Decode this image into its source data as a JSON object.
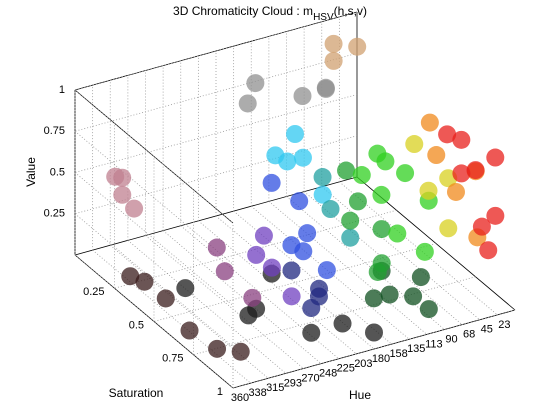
{
  "chart_data": {
    "type": "scatter3d",
    "title": "3D Chromaticity Cloud : m",
    "title_subscript": "HSV",
    "title_suffix": "(h,s,v)",
    "xlabel": "Hue",
    "ylabel": "Saturation",
    "zlabel": "Value",
    "xlim": [
      0,
      360
    ],
    "ylim": [
      0,
      1
    ],
    "zlim": [
      0,
      1
    ],
    "x_reversed": true,
    "grid": true,
    "xticks": [
      {
        "value": 22.5,
        "label": "23"
      },
      45,
      {
        "value": 67.5,
        "label": "68"
      },
      90,
      {
        "value": 112.5,
        "label": "113"
      },
      135,
      {
        "value": 157.5,
        "label": "158"
      },
      180,
      {
        "value": 202.5,
        "label": "203"
      },
      225,
      {
        "value": 247.5,
        "label": "248"
      },
      270,
      {
        "value": 292.5,
        "label": "293"
      },
      315,
      {
        "value": 337.5,
        "label": "338"
      },
      360
    ],
    "yticks": [
      0.25,
      0.5,
      0.75,
      1
    ],
    "zticks": [
      0.25,
      0.5,
      0.75,
      1
    ],
    "series": [
      {
        "color": "#1c1c1c",
        "x": [
          200,
          250,
          300,
          180,
          270,
          320,
          230
        ],
        "y": [
          0.9,
          0.95,
          0.8,
          1,
          0.7,
          0.5,
          0.6
        ],
        "z": [
          0.1,
          0.15,
          0.2,
          0.1,
          0.12,
          0.15,
          0.2
        ]
      },
      {
        "color": "#3a1c1c",
        "x": [
          350,
          345,
          355,
          340,
          330,
          352
        ],
        "y": [
          0.3,
          0.5,
          0.7,
          0.8,
          0.9,
          0.4
        ],
        "z": [
          0.1,
          0.12,
          0.1,
          0.05,
          0.1,
          0.15
        ]
      },
      {
        "color": "#c08090",
        "x": [
          330,
          340,
          335,
          345
        ],
        "y": [
          0.15,
          0.2,
          0.25,
          0.18
        ],
        "z": [
          0.55,
          0.5,
          0.45,
          0.6
        ]
      },
      {
        "color": "#909090",
        "x": [
          80,
          120,
          160,
          200,
          60
        ],
        "y": [
          0.2,
          0.25,
          0.15,
          0.3,
          0.1
        ],
        "z": [
          0.8,
          0.85,
          0.9,
          0.95,
          0.7
        ]
      },
      {
        "color": "#d0a070",
        "x": [
          40,
          50,
          30
        ],
        "y": [
          0.05,
          0.1,
          0.15
        ],
        "z": [
          0.9,
          0.85,
          0.95
        ]
      },
      {
        "color": "#8a4080",
        "x": [
          300,
          310,
          295
        ],
        "y": [
          0.6,
          0.7,
          0.8
        ],
        "z": [
          0.45,
          0.4,
          0.3
        ]
      },
      {
        "color": "#7040c0",
        "x": [
          260,
          270,
          280,
          265
        ],
        "y": [
          0.7,
          0.8,
          0.75,
          0.9
        ],
        "z": [
          0.55,
          0.45,
          0.5,
          0.35
        ]
      },
      {
        "color": "#202880",
        "x": [
          230,
          245,
          250,
          220
        ],
        "y": [
          0.9,
          0.8,
          0.95,
          0.85
        ],
        "z": [
          0.35,
          0.4,
          0.3,
          0.25
        ]
      },
      {
        "color": "#3050e0",
        "x": [
          215,
          225,
          235,
          230,
          220,
          240
        ],
        "y": [
          0.7,
          0.8,
          0.75,
          0.6,
          0.9,
          0.85
        ],
        "z": [
          0.7,
          0.6,
          0.5,
          0.75,
          0.45,
          0.55
        ]
      },
      {
        "color": "#30c8f0",
        "x": [
          180,
          190,
          195,
          185,
          200
        ],
        "y": [
          0.5,
          0.6,
          0.45,
          0.7,
          0.55
        ],
        "z": [
          0.9,
          0.85,
          0.75,
          0.7,
          0.8
        ]
      },
      {
        "color": "#20a0a0",
        "x": [
          165,
          175,
          170
        ],
        "y": [
          0.6,
          0.7,
          0.8
        ],
        "z": [
          0.7,
          0.6,
          0.5
        ]
      },
      {
        "color": "#105020",
        "x": [
          100,
          120,
          140,
          160,
          110,
          150
        ],
        "y": [
          0.9,
          0.95,
          0.85,
          0.9,
          1,
          0.95
        ],
        "z": [
          0.25,
          0.2,
          0.3,
          0.2,
          0.15,
          0.25
        ]
      },
      {
        "color": "#20a030",
        "x": [
          130,
          140,
          150,
          135,
          145,
          160
        ],
        "y": [
          0.8,
          0.7,
          0.9,
          0.6,
          0.85,
          0.75
        ],
        "z": [
          0.5,
          0.6,
          0.4,
          0.7,
          0.3,
          0.55
        ]
      },
      {
        "color": "#30d020",
        "x": [
          90,
          100,
          110,
          120,
          95,
          105,
          115,
          125
        ],
        "y": [
          0.9,
          0.8,
          0.7,
          0.85,
          0.6,
          0.95,
          0.75,
          0.65
        ],
        "z": [
          0.7,
          0.8,
          0.6,
          0.5,
          0.75,
          0.45,
          0.85,
          0.7
        ]
      },
      {
        "color": "#d8d020",
        "x": [
          55,
          60,
          65,
          58
        ],
        "y": [
          0.85,
          0.75,
          0.9,
          0.65
        ],
        "z": [
          0.75,
          0.6,
          0.5,
          0.8
        ]
      },
      {
        "color": "#f08a1c",
        "x": [
          30,
          35,
          40,
          28,
          38
        ],
        "y": [
          0.9,
          0.8,
          0.7,
          0.6,
          0.95
        ],
        "z": [
          0.8,
          0.6,
          0.75,
          0.85,
          0.45
        ]
      },
      {
        "color": "#e8201c",
        "x": [
          5,
          10,
          15,
          8,
          12,
          18,
          6,
          14
        ],
        "y": [
          0.9,
          0.8,
          0.95,
          0.7,
          0.85,
          0.75,
          0.6,
          0.9
        ],
        "z": [
          0.85,
          0.7,
          0.55,
          0.8,
          0.4,
          0.65,
          0.75,
          0.3
        ]
      }
    ]
  }
}
